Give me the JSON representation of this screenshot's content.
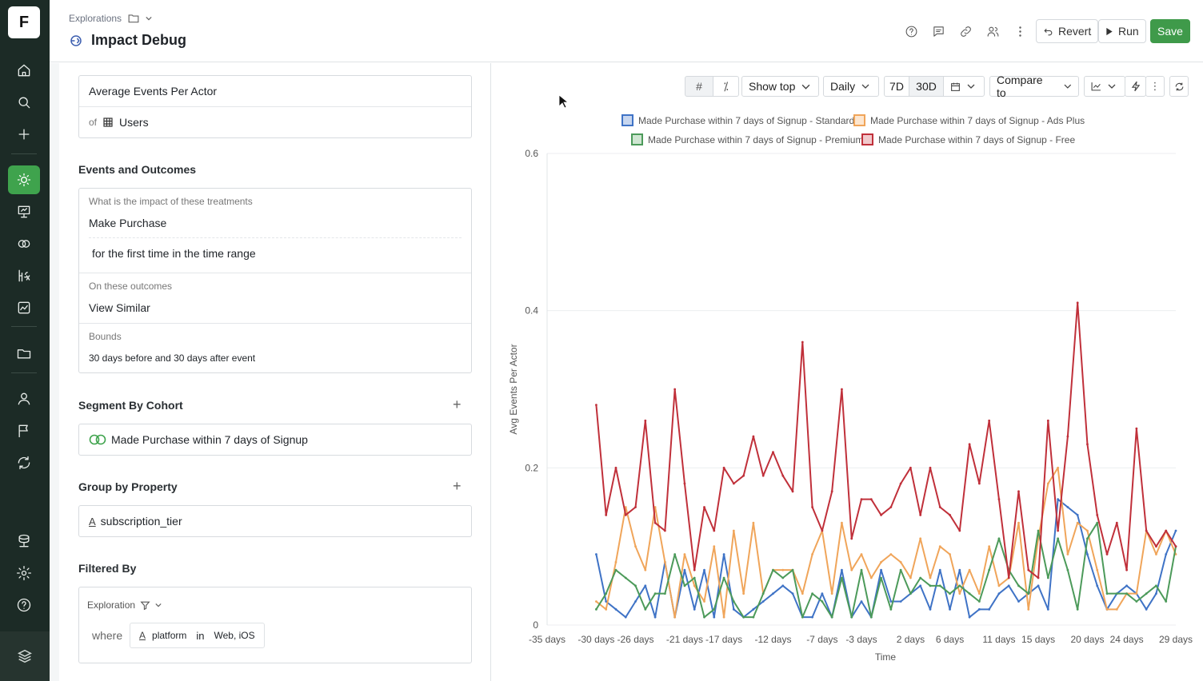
{
  "app": {
    "logo": "F"
  },
  "header": {
    "breadcrumb": "Explorations",
    "title": "Impact Debug",
    "revert_label": "Revert",
    "run_label": "Run",
    "save_label": "Save"
  },
  "metric": {
    "name": "Average Events Per Actor",
    "of_label": "of",
    "entity": "Users"
  },
  "events": {
    "section_title": "Events and Outcomes",
    "treatment_prompt": "What is the impact of these treatments",
    "treatment_event": "Make Purchase",
    "treatment_qualifier": "for the first time in the time range",
    "outcome_prompt": "On these outcomes",
    "outcome_event": "View Similar",
    "bounds_label": "Bounds",
    "bounds_value": "30 days before and 30 days after event"
  },
  "segment": {
    "section_title": "Segment By Cohort",
    "cohort": "Made Purchase within 7 days of Signup"
  },
  "group": {
    "section_title": "Group by Property",
    "property": "subscription_tier"
  },
  "filter": {
    "section_title": "Filtered By",
    "scope": "Exploration",
    "where_label": "where",
    "property": "platform",
    "operator": "in",
    "values": "Web, iOS"
  },
  "toolbar": {
    "show_top": "Show top",
    "granularity": "Daily",
    "range_7d": "7D",
    "range_30d": "30D",
    "compare": "Compare to"
  },
  "colors": {
    "standard": "#3f73c6",
    "ads_plus": "#f0a55a",
    "premium": "#4c9a5a",
    "free": "#c0303a",
    "accent": "#3fa34d"
  },
  "chart_data": {
    "type": "line",
    "xlabel": "Time",
    "ylabel": "Avg Events Per Actor",
    "ylim": [
      0,
      0.6
    ],
    "yticks": [
      "0",
      "0.2",
      "0.4",
      "0.6"
    ],
    "xticks": [
      "-35 days",
      "-30 days",
      "-26 days",
      "-21 days",
      "-17 days",
      "-12 days",
      "-7 days",
      "-3 days",
      "2 days",
      "6 days",
      "11 days",
      "15 days",
      "20 days",
      "24 days",
      "29 days"
    ],
    "x": [
      -30,
      -29,
      -28,
      -27,
      -26,
      -25,
      -24,
      -23,
      -22,
      -21,
      -20,
      -19,
      -18,
      -17,
      -16,
      -15,
      -14,
      -13,
      -12,
      -11,
      -10,
      -9,
      -8,
      -7,
      -6,
      -5,
      -4,
      -3,
      -2,
      -1,
      0,
      1,
      2,
      3,
      4,
      5,
      6,
      7,
      8,
      9,
      10,
      11,
      12,
      13,
      14,
      15,
      16,
      17,
      18,
      19,
      20,
      21,
      22,
      23,
      24,
      25,
      26,
      27,
      28,
      29
    ],
    "series": [
      {
        "name": "Made Purchase within 7 days of Signup - Standard",
        "values": [
          0.09,
          0.03,
          0.02,
          0.01,
          0.03,
          0.05,
          0.01,
          0.08,
          0.01,
          0.07,
          0.02,
          0.07,
          0.01,
          0.09,
          0.02,
          0.01,
          0.02,
          0.03,
          0.04,
          0.05,
          0.04,
          0.01,
          0.01,
          0.04,
          0.01,
          0.07,
          0.01,
          0.03,
          0.01,
          0.07,
          0.03,
          0.03,
          0.04,
          0.05,
          0.02,
          0.07,
          0.02,
          0.07,
          0.01,
          0.02,
          0.02,
          0.04,
          0.05,
          0.03,
          0.04,
          0.05,
          0.02,
          0.16,
          0.15,
          0.14,
          0.09,
          0.05,
          0.02,
          0.04,
          0.05,
          0.04,
          0.02,
          0.04,
          0.09,
          0.12
        ]
      },
      {
        "name": "Made Purchase within 7 days of Signup - Ads Plus",
        "values": [
          0.03,
          0.02,
          0.08,
          0.15,
          0.1,
          0.07,
          0.15,
          0.08,
          0.01,
          0.09,
          0.05,
          0.03,
          0.1,
          0.01,
          0.12,
          0.04,
          0.13,
          0.04,
          0.07,
          0.07,
          0.07,
          0.04,
          0.09,
          0.12,
          0.04,
          0.13,
          0.07,
          0.09,
          0.06,
          0.08,
          0.09,
          0.08,
          0.06,
          0.11,
          0.06,
          0.1,
          0.09,
          0.04,
          0.07,
          0.04,
          0.1,
          0.05,
          0.06,
          0.13,
          0.02,
          0.11,
          0.18,
          0.2,
          0.09,
          0.13,
          0.12,
          0.07,
          0.02,
          0.02,
          0.04,
          0.04,
          0.12,
          0.09,
          0.12,
          0.09
        ]
      },
      {
        "name": "Made Purchase within 7 days of Signup - Premium",
        "values": [
          0.02,
          0.04,
          0.07,
          0.06,
          0.05,
          0.02,
          0.04,
          0.04,
          0.09,
          0.05,
          0.06,
          0.01,
          0.02,
          0.06,
          0.03,
          0.01,
          0.01,
          0.04,
          0.07,
          0.06,
          0.07,
          0.01,
          0.04,
          0.03,
          0.01,
          0.06,
          0.01,
          0.07,
          0.01,
          0.06,
          0.02,
          0.07,
          0.04,
          0.06,
          0.05,
          0.05,
          0.04,
          0.05,
          0.04,
          0.03,
          0.07,
          0.11,
          0.07,
          0.05,
          0.04,
          0.12,
          0.06,
          0.11,
          0.07,
          0.02,
          0.11,
          0.13,
          0.04,
          0.04,
          0.04,
          0.03,
          0.04,
          0.05,
          0.03,
          0.1
        ]
      },
      {
        "name": "Made Purchase within 7 days of Signup - Free",
        "values": [
          0.28,
          0.14,
          0.2,
          0.14,
          0.15,
          0.26,
          0.13,
          0.12,
          0.3,
          0.18,
          0.07,
          0.15,
          0.12,
          0.2,
          0.18,
          0.19,
          0.24,
          0.19,
          0.22,
          0.19,
          0.17,
          0.36,
          0.15,
          0.12,
          0.17,
          0.3,
          0.11,
          0.16,
          0.16,
          0.14,
          0.15,
          0.18,
          0.2,
          0.14,
          0.2,
          0.15,
          0.14,
          0.12,
          0.23,
          0.18,
          0.26,
          0.16,
          0.06,
          0.17,
          0.07,
          0.06,
          0.26,
          0.12,
          0.24,
          0.41,
          0.23,
          0.14,
          0.09,
          0.13,
          0.07,
          0.25,
          0.12,
          0.1,
          0.12,
          0.1
        ]
      }
    ]
  }
}
